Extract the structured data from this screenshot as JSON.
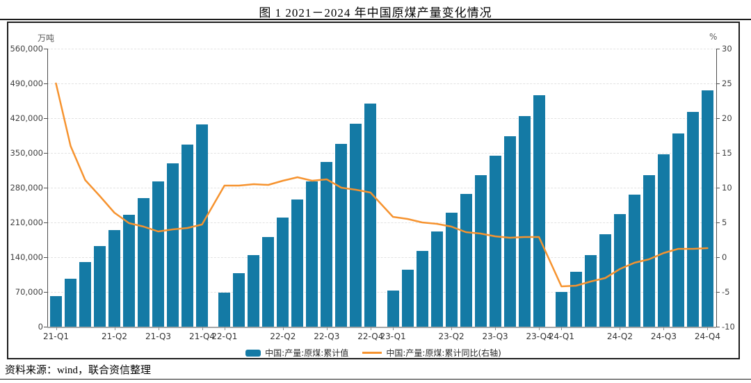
{
  "title": "图 1  2021－2024 年中国原煤产量变化情况",
  "source_note": "资料来源：wind，联合资信整理",
  "legend": {
    "bars_label": "中国:产量:原煤:累计值",
    "line_label": "中国:产量:原煤:累计同比(右轴)"
  },
  "chart_data": {
    "type": "bar",
    "subtype": "bar-line-combo",
    "title": "图 1  2021－2024 年中国原煤产量变化情况",
    "categories": [
      "21-02",
      "21-03",
      "21-04",
      "21-05",
      "21-06",
      "21-07",
      "21-08",
      "21-09",
      "21-10",
      "21-11",
      "21-12",
      "22-02",
      "22-03",
      "22-04",
      "22-05",
      "22-06",
      "22-07",
      "22-08",
      "22-09",
      "22-10",
      "22-11",
      "22-12",
      "23-02",
      "23-03",
      "23-04",
      "23-05",
      "23-06",
      "23-07",
      "23-08",
      "23-09",
      "23-10",
      "23-11",
      "23-12",
      "24-02",
      "24-03",
      "24-04",
      "24-05",
      "24-06",
      "24-07",
      "24-08",
      "24-09",
      "24-10",
      "24-11",
      "24-12"
    ],
    "series": [
      {
        "name": "中国:产量:原煤:累计值",
        "type": "bar",
        "axis": "left",
        "unit": "万吨",
        "values": [
          61800,
          97100,
          129700,
          162400,
          194900,
          225700,
          259700,
          293200,
          329700,
          367100,
          407100,
          68700,
          108300,
          144800,
          181100,
          219200,
          256200,
          293200,
          331700,
          368500,
          409400,
          449600,
          73400,
          115300,
          153200,
          191200,
          230100,
          267800,
          305400,
          344200,
          383000,
          424000,
          465800,
          70500,
          110700,
          144800,
          186000,
          226600,
          266200,
          305000,
          347600,
          389200,
          432300,
          476100
        ]
      },
      {
        "name": "中国:产量:原煤:累计同比(右轴)",
        "type": "line",
        "axis": "right",
        "unit": "%",
        "values": [
          25.0,
          16.0,
          11.1,
          8.8,
          6.4,
          4.9,
          4.4,
          3.7,
          4.0,
          4.2,
          4.7,
          10.3,
          10.3,
          10.5,
          10.4,
          11.0,
          11.5,
          11.0,
          11.2,
          10.0,
          9.7,
          9.3,
          5.8,
          5.5,
          5.0,
          4.8,
          4.4,
          3.6,
          3.4,
          3.0,
          2.8,
          2.9,
          2.9,
          -4.2,
          -4.1,
          -3.5,
          -3.0,
          -1.7,
          -0.8,
          -0.3,
          0.6,
          1.2,
          1.2,
          1.3
        ]
      }
    ],
    "left_axis": {
      "label": "万吨",
      "min": 0,
      "max": 560000,
      "tick_values": [
        0,
        70000,
        140000,
        210000,
        280000,
        350000,
        420000,
        490000,
        560000
      ],
      "tick_labels": [
        "0",
        "70,000",
        "140,000",
        "210,000",
        "280,000",
        "350,000",
        "420,000",
        "490,000",
        "560,000"
      ]
    },
    "right_axis": {
      "label": "%",
      "min": -10,
      "max": 30,
      "tick_values": [
        -10,
        -5,
        0,
        5,
        10,
        15,
        20,
        25,
        30
      ],
      "tick_labels": [
        "-10",
        "-5",
        "0",
        "5",
        "10",
        "15",
        "20",
        "25",
        "30"
      ]
    },
    "x_tick_labels": [
      "21-Q1",
      "21-Q2",
      "21-Q3",
      "21-Q4",
      "22-Q1",
      "22-Q2",
      "22-Q3",
      "22-Q4",
      "23-Q1",
      "23-Q2",
      "23-Q3",
      "23-Q4",
      "24-Q1",
      "24-Q2",
      "24-Q3",
      "24-Q4"
    ],
    "x_tick_point_indices": [
      0,
      4,
      7,
      10,
      11,
      15,
      18,
      21,
      22,
      26,
      29,
      32,
      33,
      37,
      40,
      43
    ],
    "layout": {
      "grid": "horizontal-dashed",
      "legend_position": "bottom-center",
      "bars_per_year": 11,
      "year_groups": 4
    },
    "colors": {
      "bar": "#147aa5",
      "line": "#f6932f"
    }
  }
}
